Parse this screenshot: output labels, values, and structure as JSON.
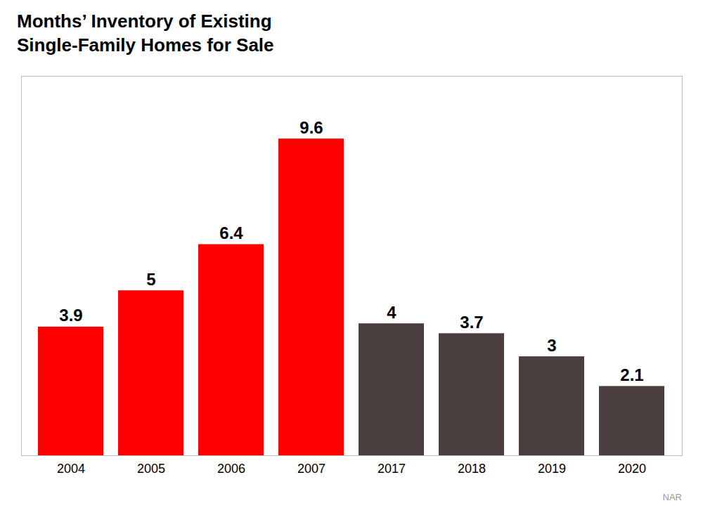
{
  "chart_data": {
    "type": "bar",
    "title": "Months’ Inventory of Existing\nSingle-Family Homes for Sale",
    "categories": [
      "2004",
      "2005",
      "2006",
      "2007",
      "2017",
      "2018",
      "2019",
      "2020"
    ],
    "values": [
      3.9,
      5.0,
      6.4,
      9.6,
      4.0,
      3.7,
      3.0,
      2.1
    ],
    "colors": [
      "#FF0000",
      "#FF0000",
      "#FF0000",
      "#FF0000",
      "#4A3E3E",
      "#4A3E3E",
      "#4A3E3E",
      "#4A3E3E"
    ],
    "ylim": [
      0,
      11.5
    ],
    "grid": false,
    "data_labels": true,
    "tick_labels": "x",
    "annotations": [
      "NAR"
    ]
  }
}
